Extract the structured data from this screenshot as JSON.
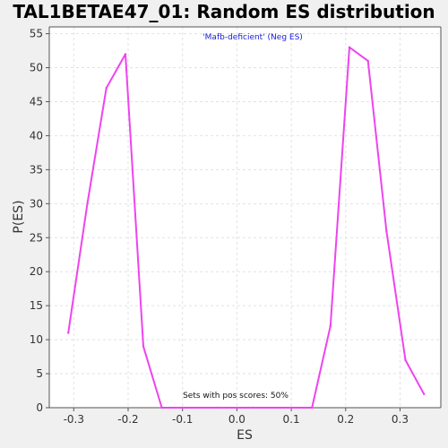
{
  "chart_data": {
    "type": "line",
    "title": "TAL1BETAE47_01: Random ES distribution",
    "subtitle": "'Mafb-deficient' (Neg ES)",
    "xlabel": "ES",
    "ylabel": "P(ES)",
    "xlim": [
      -0.345,
      0.375
    ],
    "ylim": [
      0,
      56
    ],
    "x_ticks": [
      -0.3,
      -0.2,
      -0.1,
      0.0,
      0.1,
      0.2,
      0.3
    ],
    "x_tick_labels": [
      "-0.3",
      "-0.2",
      "-0.1",
      "0.0",
      "0.1",
      "0.2",
      "0.3"
    ],
    "y_ticks": [
      0,
      5,
      10,
      15,
      20,
      25,
      30,
      35,
      40,
      45,
      50,
      55
    ],
    "y_tick_labels": [
      "0",
      "5",
      "10",
      "15",
      "20",
      "25",
      "30",
      "35",
      "40",
      "45",
      "50",
      "55"
    ],
    "grid": true,
    "annotation": "Sets with pos scores: 50%",
    "series": [
      {
        "color": "#ee44ee",
        "x": [
          -0.31,
          -0.275,
          -0.24,
          -0.205,
          -0.172,
          -0.138,
          -0.1,
          -0.035,
          0.03,
          0.1,
          0.138,
          0.172,
          0.207,
          0.241,
          0.275,
          0.31,
          0.344
        ],
        "y": [
          11,
          30,
          47,
          52,
          9,
          0,
          0,
          0,
          0,
          0,
          0,
          12,
          53,
          51,
          26,
          7,
          2
        ]
      }
    ]
  }
}
